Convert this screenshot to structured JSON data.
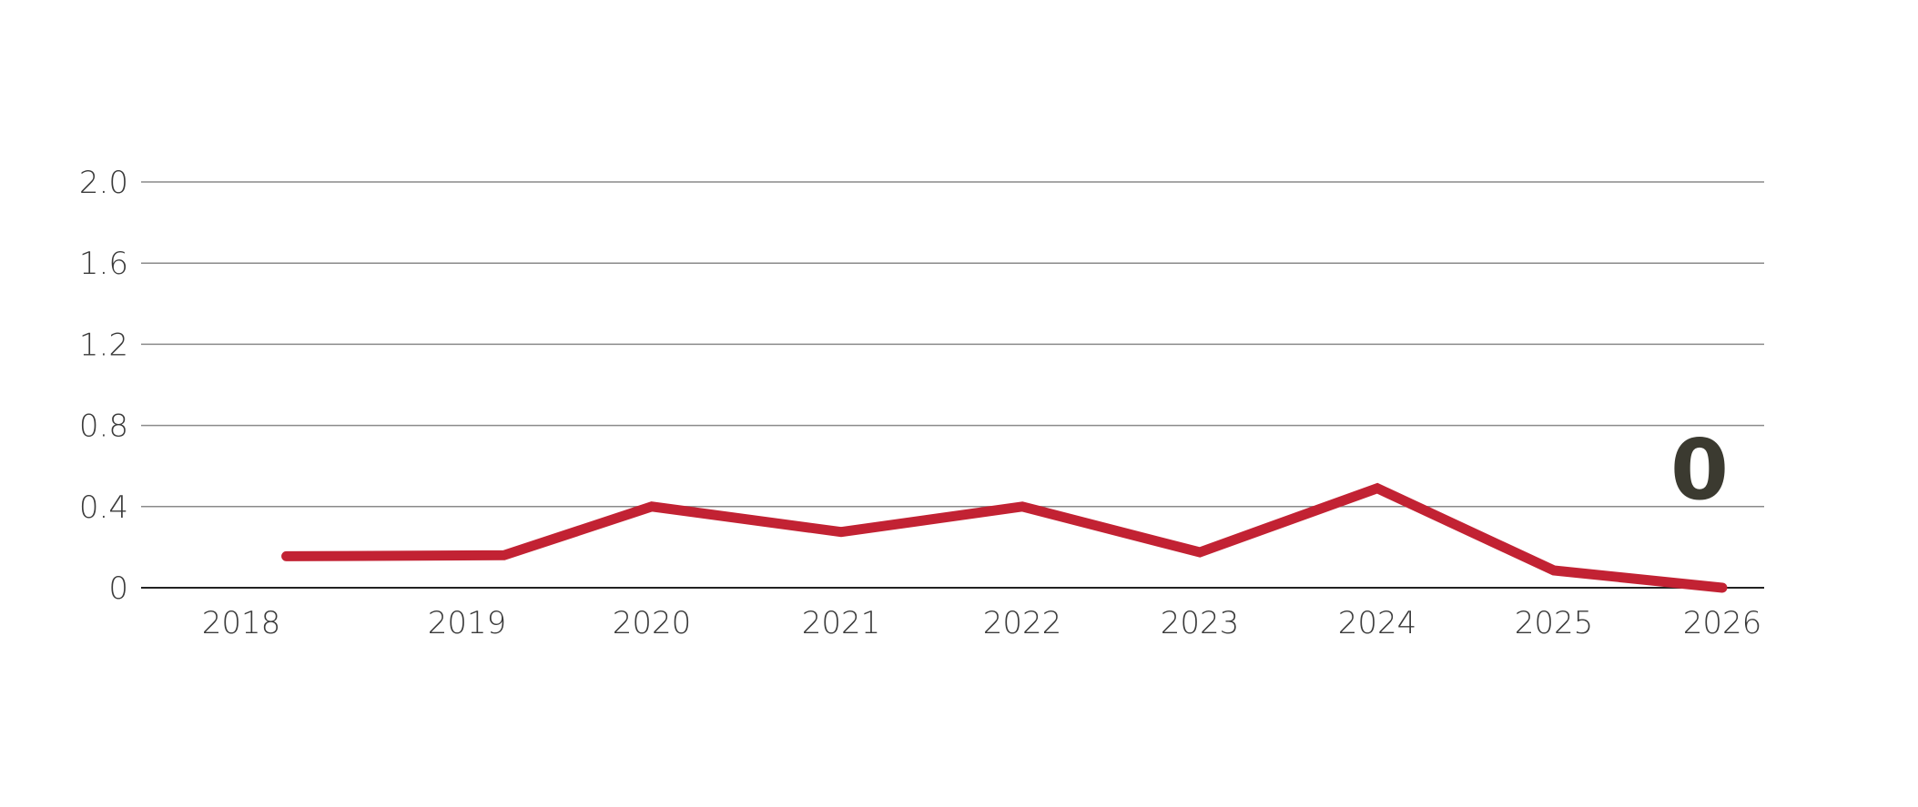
{
  "chart_data": {
    "type": "line",
    "title": "",
    "xlabel": "",
    "ylabel": "",
    "x_ticks": [
      "2018",
      "2019",
      "2020",
      "2021",
      "2022",
      "2023",
      "2024",
      "2025",
      "2026"
    ],
    "y_ticks": [
      "0",
      "0.4",
      "0.8",
      "1.2",
      "1.6",
      "2.0"
    ],
    "ylim": [
      0,
      2.0
    ],
    "grid": true,
    "series": [
      {
        "color": "#c22233",
        "points": [
          {
            "x": 2018.2,
            "y": 0.155
          },
          {
            "x": 2019.2,
            "y": 0.16
          },
          {
            "x": 2020.0,
            "y": 0.4
          },
          {
            "x": 2021.0,
            "y": 0.275
          },
          {
            "x": 2022.0,
            "y": 0.4
          },
          {
            "x": 2023.0,
            "y": 0.175
          },
          {
            "x": 2024.0,
            "y": 0.49
          },
          {
            "x": 2025.0,
            "y": 0.085
          },
          {
            "x": 2026.0,
            "y": 0.0
          }
        ]
      }
    ],
    "last_value_label": "0"
  }
}
